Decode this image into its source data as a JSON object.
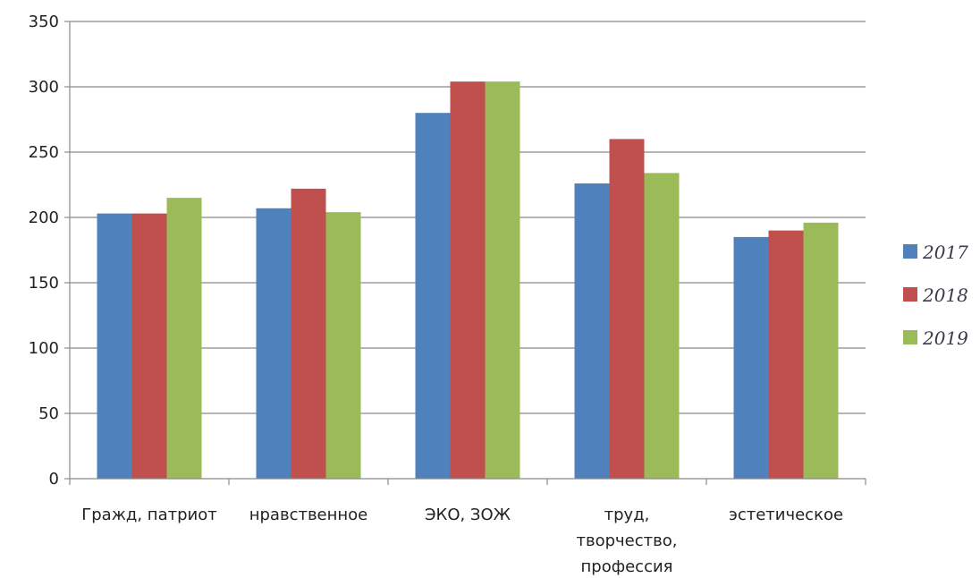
{
  "chart_data": {
    "type": "bar",
    "categories": [
      [
        "Гражд, патриот"
      ],
      [
        "нравственное"
      ],
      [
        "ЭКО, ЗОЖ"
      ],
      [
        "труд,",
        "творчество,",
        "профессия"
      ],
      [
        "эстетическое"
      ]
    ],
    "series": [
      {
        "name": "2017",
        "color": "#4f81bd",
        "values": [
          203,
          207,
          280,
          226,
          185
        ]
      },
      {
        "name": "2018",
        "color": "#c0504d",
        "values": [
          203,
          222,
          304,
          260,
          190
        ]
      },
      {
        "name": "2019",
        "color": "#9bbb59",
        "values": [
          215,
          204,
          304,
          234,
          196
        ]
      }
    ],
    "ylim": [
      0,
      350
    ],
    "yticks": [
      0,
      50,
      100,
      150,
      200,
      250,
      300,
      350
    ],
    "grid": true,
    "legend": "right",
    "title": "",
    "xlabel": "",
    "ylabel": ""
  }
}
